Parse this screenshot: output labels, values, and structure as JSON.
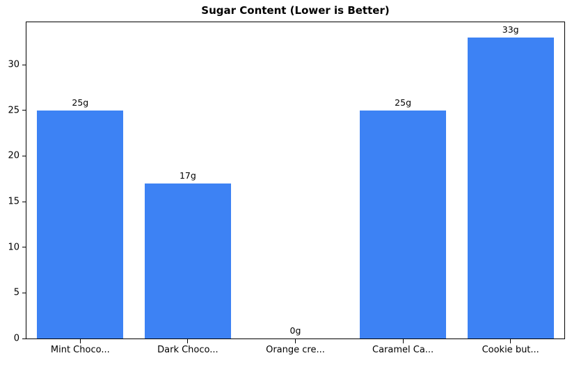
{
  "title": "Sugar Content (Lower is Better)",
  "chart_data": {
    "type": "bar",
    "title": "Sugar Content (Lower is Better)",
    "categories": [
      "Mint Choco...",
      "Dark Choco...",
      "Orange cre...",
      "Caramel Ca...",
      "Cookie but..."
    ],
    "values": [
      25,
      17,
      0,
      25,
      33
    ],
    "bar_labels": [
      "25g",
      "17g",
      "0g",
      "25g",
      "33g"
    ],
    "xlabel": "",
    "ylabel": "",
    "ylim": [
      0,
      34.65
    ],
    "yticks": [
      0,
      5,
      10,
      15,
      20,
      25,
      30
    ],
    "bar_color": "#3d82f4",
    "axes_color": "#000000",
    "background_color": "#ffffff",
    "grid": false,
    "legend_position": "none",
    "bar_width_fraction": 0.8
  }
}
